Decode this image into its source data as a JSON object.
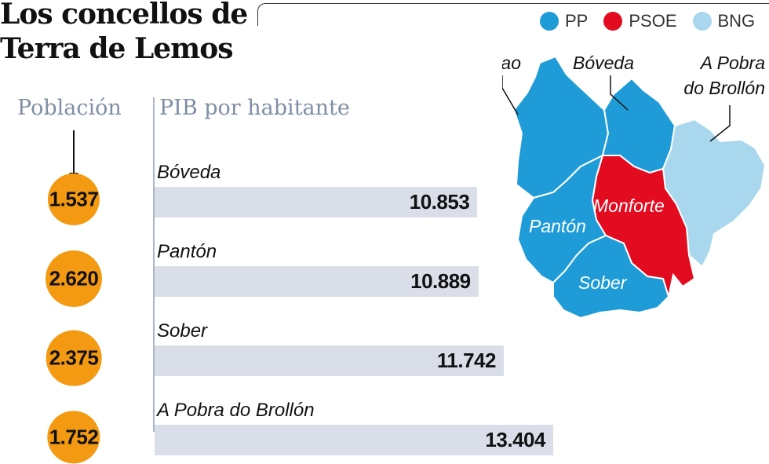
{
  "title_line1": "Los concellos de",
  "title_line2": "Terra de Lemos",
  "legend": [
    {
      "label": "PP",
      "color": "#1f9cd8"
    },
    {
      "label": "PSOE",
      "color": "#e30b1f"
    },
    {
      "label": "BNG",
      "color": "#a9d7ee"
    }
  ],
  "map": {
    "labels": {
      "saviñao": "O Saviñao",
      "boveda": "Bóveda",
      "pobra1": "A Pobra",
      "pobra2": "do Brollón",
      "monforte": "Monforte",
      "panton": "Pantón",
      "sober": "Sober"
    },
    "colors": {
      "pp": "#1f9cd8",
      "psoe": "#e30b1f",
      "bng": "#a9d7ee"
    }
  },
  "chart_data": {
    "type": "bar",
    "title": "",
    "population_label": "Población",
    "xlabel": "PIB por habitante",
    "categories": [
      "Bóveda",
      "Pantón",
      "Sober",
      "A Pobra do Brollón"
    ],
    "values": [
      10853,
      10889,
      11742,
      13404
    ],
    "value_labels": [
      "10.853",
      "10.889",
      "11.742",
      "13.404"
    ],
    "population": [
      1537,
      2620,
      2375,
      1752
    ],
    "population_labels": [
      "1.537",
      "2.620",
      "2.375",
      "1.752"
    ],
    "xlim": [
      0,
      19000
    ]
  }
}
